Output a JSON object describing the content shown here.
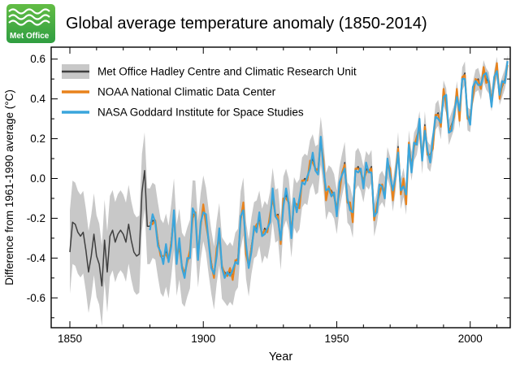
{
  "logo": {
    "text": "Met Office",
    "bg_color": "#3DAE2B"
  },
  "header": {
    "title": "Global average temperature anomaly (1850-2014)"
  },
  "chart_data": {
    "type": "line",
    "title": "Global average temperature anomaly (1850-2014)",
    "xlabel": "Year",
    "ylabel": "Difference from 1961-1990 average (°C)",
    "xlim": [
      1843,
      2015
    ],
    "ylim": [
      -0.75,
      0.66
    ],
    "x_major_ticks": [
      1850,
      1900,
      1950,
      2000
    ],
    "x_minor_step": 10,
    "y_major_ticks": [
      -0.6,
      -0.4,
      -0.2,
      0,
      0.2,
      0.4,
      0.6
    ],
    "y_minor_step": 0.1,
    "grid": false,
    "legend_position": "top-left-inside",
    "series": [
      {
        "name": "Met Office Hadley Centre and Climatic Research Unit",
        "color": "#3f3f3f",
        "band_color": "#c8c8c8",
        "start_year": 1850,
        "values": [
          -0.37,
          -0.22,
          -0.23,
          -0.27,
          -0.29,
          -0.27,
          -0.36,
          -0.47,
          -0.39,
          -0.28,
          -0.39,
          -0.43,
          -0.54,
          -0.31,
          -0.47,
          -0.29,
          -0.26,
          -0.32,
          -0.28,
          -0.26,
          -0.28,
          -0.32,
          -0.23,
          -0.31,
          -0.37,
          -0.39,
          -0.38,
          -0.07,
          0.04,
          -0.24,
          -0.24,
          -0.21,
          -0.22,
          -0.31,
          -0.39,
          -0.41,
          -0.36,
          -0.42,
          -0.31,
          -0.18,
          -0.41,
          -0.33,
          -0.45,
          -0.47,
          -0.42,
          -0.38,
          -0.18,
          -0.18,
          -0.38,
          -0.24,
          -0.15,
          -0.21,
          -0.32,
          -0.42,
          -0.5,
          -0.37,
          -0.28,
          -0.45,
          -0.47,
          -0.49,
          -0.47,
          -0.49,
          -0.42,
          -0.4,
          -0.21,
          -0.14,
          -0.36,
          -0.45,
          -0.34,
          -0.26,
          -0.25,
          -0.2,
          -0.29,
          -0.25,
          -0.27,
          -0.2,
          -0.08,
          -0.19,
          -0.18,
          -0.33,
          -0.12,
          -0.08,
          -0.13,
          -0.27,
          -0.12,
          -0.15,
          -0.13,
          -0.02,
          0.0,
          -0.01,
          0.07,
          0.1,
          0.04,
          0.05,
          0.19,
          0.07,
          -0.09,
          -0.05,
          -0.06,
          -0.09,
          -0.17,
          -0.05,
          0.02,
          0.08,
          -0.12,
          -0.14,
          -0.2,
          0.04,
          0.06,
          0.03,
          -0.03,
          0.05,
          0.03,
          0.06,
          -0.21,
          -0.15,
          -0.06,
          -0.04,
          -0.07,
          0.08,
          0.03,
          -0.09,
          0.01,
          0.16,
          -0.08,
          -0.02,
          -0.11,
          0.17,
          0.06,
          0.16,
          0.19,
          0.27,
          0.09,
          0.27,
          0.12,
          0.1,
          0.17,
          0.31,
          0.33,
          0.26,
          0.43,
          0.39,
          0.23,
          0.27,
          0.31,
          0.43,
          0.31,
          0.5,
          0.53,
          0.3,
          0.29,
          0.43,
          0.49,
          0.5,
          0.45,
          0.54,
          0.5,
          0.48,
          0.39,
          0.49,
          0.56,
          0.42,
          0.46,
          0.5,
          0.57
        ],
        "uncertainty_anchors": [
          [
            1850,
            0.21
          ],
          [
            1870,
            0.2
          ],
          [
            1890,
            0.18
          ],
          [
            1910,
            0.15
          ],
          [
            1930,
            0.13
          ],
          [
            1945,
            0.12
          ],
          [
            1955,
            0.1
          ],
          [
            1965,
            0.08
          ],
          [
            1980,
            0.07
          ],
          [
            1995,
            0.06
          ],
          [
            2014,
            0.05
          ]
        ]
      },
      {
        "name": "NOAA National Climatic Data Center",
        "color": "#e8821c",
        "start_year": 1880,
        "values": [
          -0.22,
          -0.23,
          -0.21,
          -0.32,
          -0.39,
          -0.39,
          -0.38,
          -0.41,
          -0.32,
          -0.18,
          -0.39,
          -0.35,
          -0.44,
          -0.48,
          -0.42,
          -0.36,
          -0.2,
          -0.17,
          -0.39,
          -0.24,
          -0.13,
          -0.23,
          -0.31,
          -0.43,
          -0.5,
          -0.35,
          -0.3,
          -0.44,
          -0.48,
          -0.49,
          -0.45,
          -0.51,
          -0.41,
          -0.41,
          -0.21,
          -0.12,
          -0.38,
          -0.44,
          -0.35,
          -0.26,
          -0.23,
          -0.22,
          -0.28,
          -0.26,
          -0.27,
          -0.18,
          -0.1,
          -0.18,
          -0.19,
          -0.33,
          -0.1,
          -0.1,
          -0.12,
          -0.28,
          -0.12,
          -0.13,
          -0.15,
          -0.01,
          -0.01,
          -0.01,
          0.09,
          0.08,
          0.05,
          0.04,
          0.19,
          0.09,
          -0.11,
          -0.04,
          -0.07,
          -0.09,
          -0.15,
          -0.07,
          0.03,
          0.07,
          -0.12,
          -0.12,
          -0.22,
          0.05,
          0.05,
          0.03,
          -0.01,
          0.03,
          0.04,
          0.05,
          -0.21,
          -0.13,
          -0.08,
          -0.03,
          -0.08,
          0.08,
          0.05,
          -0.11,
          0.02,
          0.15,
          -0.08,
          0.0,
          -0.13,
          0.18,
          0.05,
          0.16,
          0.21,
          0.25,
          0.1,
          0.26,
          0.12,
          0.12,
          0.15,
          0.32,
          0.32,
          0.26,
          0.45,
          0.37,
          0.24,
          0.26,
          0.31,
          0.45,
          0.29,
          0.51,
          0.52,
          0.3,
          0.31,
          0.41,
          0.5,
          0.49,
          0.45,
          0.56,
          0.48,
          0.49,
          0.38,
          0.49,
          0.58,
          0.4,
          0.47,
          0.49,
          0.57
        ]
      },
      {
        "name": "NASA Goddard Institute for Space Studies",
        "color": "#3aa5dc",
        "start_year": 1880,
        "values": [
          -0.26,
          -0.18,
          -0.22,
          -0.34,
          -0.37,
          -0.43,
          -0.33,
          -0.42,
          -0.34,
          -0.16,
          -0.43,
          -0.3,
          -0.45,
          -0.5,
          -0.4,
          -0.4,
          -0.15,
          -0.18,
          -0.41,
          -0.22,
          -0.17,
          -0.18,
          -0.32,
          -0.45,
          -0.48,
          -0.39,
          -0.25,
          -0.45,
          -0.5,
          -0.47,
          -0.49,
          -0.46,
          -0.42,
          -0.43,
          -0.19,
          -0.16,
          -0.33,
          -0.45,
          -0.37,
          -0.24,
          -0.27,
          -0.17,
          -0.29,
          -0.28,
          -0.25,
          -0.22,
          -0.05,
          -0.19,
          -0.21,
          -0.31,
          -0.14,
          -0.05,
          -0.13,
          -0.3,
          -0.1,
          -0.17,
          -0.1,
          -0.02,
          -0.03,
          0.01,
          0.05,
          0.13,
          0.04,
          0.02,
          0.21,
          0.05,
          -0.06,
          -0.05,
          -0.09,
          -0.07,
          -0.19,
          -0.02,
          0.02,
          0.05,
          -0.1,
          -0.16,
          -0.17,
          0.04,
          0.03,
          0.05,
          -0.05,
          0.08,
          0.03,
          0.03,
          -0.19,
          -0.17,
          -0.03,
          -0.04,
          -0.1,
          0.1,
          0.01,
          -0.06,
          0.01,
          0.13,
          -0.06,
          -0.04,
          -0.08,
          0.17,
          0.03,
          0.18,
          0.17,
          0.3,
          0.09,
          0.24,
          0.14,
          0.08,
          0.2,
          0.31,
          0.3,
          0.28,
          0.41,
          0.42,
          0.23,
          0.24,
          0.33,
          0.41,
          0.34,
          0.5,
          0.5,
          0.32,
          0.27,
          0.46,
          0.49,
          0.47,
          0.47,
          0.52,
          0.53,
          0.48,
          0.36,
          0.51,
          0.54,
          0.42,
          0.49,
          0.48,
          0.59
        ]
      }
    ]
  }
}
